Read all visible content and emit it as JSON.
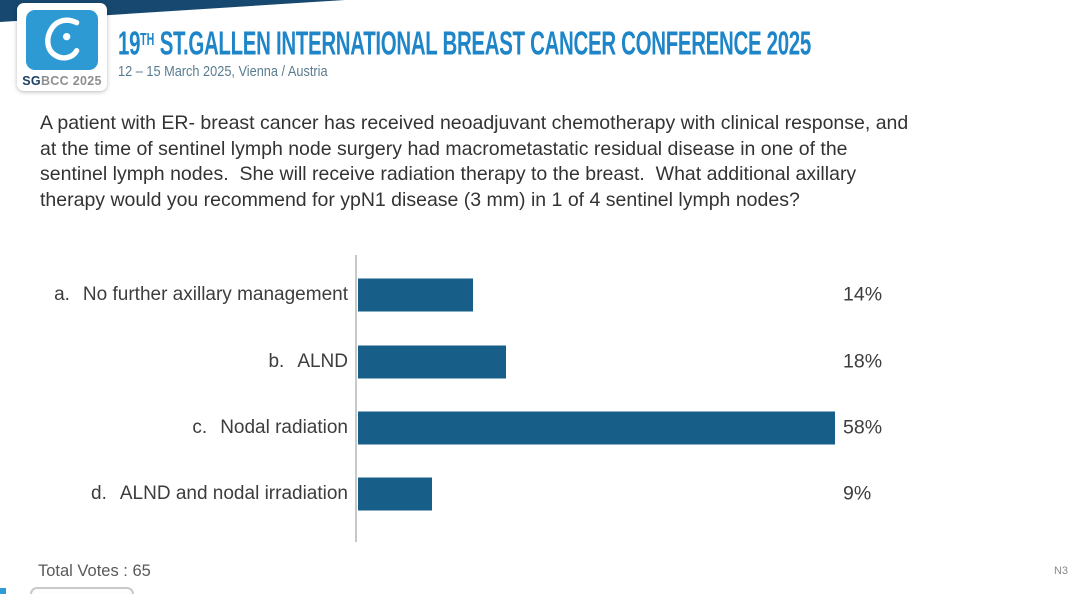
{
  "header": {
    "logo": {
      "caption_bold": "SG",
      "caption_rest": "BCC 2025"
    },
    "title_number": "19",
    "title_ordinal": "TH",
    "title_text": " ST.GALLEN INTERNATIONAL BREAST CANCER CONFERENCE 2025",
    "subtitle": "12 – 15 March 2025, Vienna / Austria"
  },
  "question": {
    "lines": [
      "A patient with ER- breast cancer has received neoadjuvant chemotherapy with clinical response, and",
      "at the time of sentinel lymph node surgery had macrometastatic residual disease in one of the",
      "sentinel lymph nodes.  She will receive radiation therapy to the breast.  What additional axillary",
      "therapy would you recommend for ypN1 disease (3 mm) in 1 of 4 sentinel lymph nodes?"
    ]
  },
  "chart_data": {
    "type": "bar",
    "orientation": "horizontal",
    "title": "",
    "categories": [
      "a. No further axillary management",
      "b. ALND",
      "c. Nodal radiation",
      "d. ALND and nodal irradiation"
    ],
    "values": [
      14,
      18,
      58,
      9
    ],
    "value_labels": [
      "14%",
      "18%",
      "58%",
      "9%"
    ],
    "options": [
      {
        "letter": "a.",
        "text": "No further axillary management",
        "value": 14,
        "label": "14%"
      },
      {
        "letter": "b.",
        "text": "ALND",
        "value": 18,
        "label": "18%"
      },
      {
        "letter": "c.",
        "text": "Nodal radiation",
        "value": 58,
        "label": "58%"
      },
      {
        "letter": "d.",
        "text": "ALND and nodal irradiation",
        "value": 9,
        "label": "9%"
      }
    ],
    "xlim": [
      0,
      59
    ],
    "grid": false,
    "legend": "none",
    "bar_color": "#175e88",
    "axis_color": "#c8c8c8",
    "total_votes": 65
  },
  "footer": {
    "total_votes_label": "Total Votes : 65",
    "slide_code": "N3"
  },
  "colors": {
    "title_blue": "#1e86c8",
    "logo_blue": "#2d9ad3",
    "navy_band": "#17486f",
    "subtitle_gray": "#5a7c90",
    "text_dark": "#333333"
  }
}
